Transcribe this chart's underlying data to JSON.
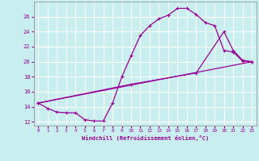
{
  "xlabel": "Windchill (Refroidissement éolien,°C)",
  "bg_color": "#c8eef0",
  "line_color": "#990099",
  "grid_color": "#ffffff",
  "xlim": [
    -0.5,
    23.5
  ],
  "ylim": [
    11.5,
    28
  ],
  "yticks": [
    12,
    14,
    16,
    18,
    20,
    22,
    24,
    26
  ],
  "xticks": [
    0,
    1,
    2,
    3,
    4,
    5,
    6,
    7,
    8,
    9,
    10,
    11,
    12,
    13,
    14,
    15,
    16,
    17,
    18,
    19,
    20,
    21,
    22,
    23
  ],
  "curve1_x": [
    0,
    1,
    2,
    3,
    4,
    5,
    6,
    7,
    8,
    9,
    10,
    11,
    12,
    13,
    14,
    15,
    16,
    17,
    18,
    19,
    20,
    21,
    22,
    23
  ],
  "curve1_y": [
    14.5,
    13.8,
    13.3,
    13.2,
    13.2,
    12.3,
    12.1,
    12.1,
    14.5,
    18.0,
    20.8,
    23.5,
    24.8,
    25.7,
    26.2,
    27.1,
    27.1,
    26.3,
    25.2,
    24.8,
    21.5,
    21.3,
    20.1,
    20.0
  ],
  "curve2_x": [
    0,
    23
  ],
  "curve2_y": [
    14.5,
    20.0
  ],
  "curve3_x": [
    0,
    10,
    17,
    20,
    21,
    22,
    23
  ],
  "curve3_y": [
    14.5,
    17.0,
    18.5,
    24.0,
    21.5,
    20.2,
    20.0
  ]
}
